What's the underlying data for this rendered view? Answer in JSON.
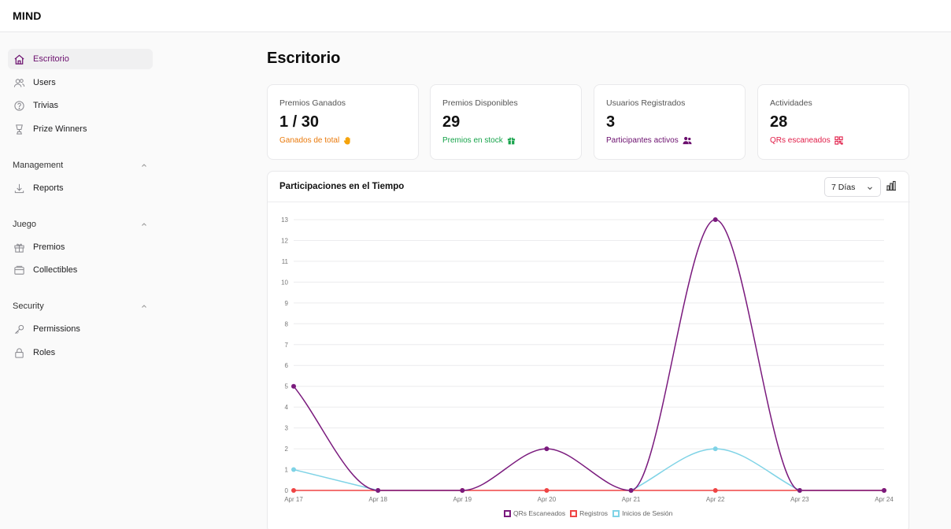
{
  "app": {
    "brand": "MIND"
  },
  "sidebar": {
    "items": [
      {
        "label": "Escritorio",
        "icon": "home-icon"
      },
      {
        "label": "Users",
        "icon": "users-icon"
      },
      {
        "label": "Trivias",
        "icon": "question-circle-icon"
      },
      {
        "label": "Prize Winners",
        "icon": "trophy-icon"
      }
    ],
    "sections": [
      {
        "label": "Management",
        "items": [
          {
            "label": "Reports",
            "icon": "download-icon"
          }
        ]
      },
      {
        "label": "Juego",
        "items": [
          {
            "label": "Premios",
            "icon": "gift-icon"
          },
          {
            "label": "Collectibles",
            "icon": "archive-icon"
          }
        ]
      },
      {
        "label": "Security",
        "items": [
          {
            "label": "Permissions",
            "icon": "key-icon"
          },
          {
            "label": "Roles",
            "icon": "lock-icon"
          }
        ]
      }
    ]
  },
  "page": {
    "title": "Escritorio"
  },
  "kpis": [
    {
      "label": "Premios Ganados",
      "value": "1 / 30",
      "sub": "Ganados de total",
      "sub_color": "#ea7a0c",
      "icon": "hand-icon"
    },
    {
      "label": "Premios Disponibles",
      "value": "29",
      "sub": "Premios en stock",
      "sub_color": "#16a34a",
      "icon": "gift-icon"
    },
    {
      "label": "Usuarios Registrados",
      "value": "3",
      "sub": "Participantes activos",
      "sub_color": "#6b0f6e",
      "icon": "users-icon"
    },
    {
      "label": "Actividades",
      "value": "28",
      "sub": "QRs escaneados",
      "sub_color": "#e11d48",
      "icon": "qr-code-icon"
    }
  ],
  "chart": {
    "title": "Participaciones en el Tiempo",
    "range": "7 Días",
    "type_button_icon": "bar-chart-icon"
  },
  "colors": {
    "accent": "#6b0f6e",
    "series_qr": "#7a1a7d",
    "series_registros": "#ef4444",
    "series_inicios": "#7fd3e6"
  },
  "chart_data": {
    "type": "line",
    "categories": [
      "Apr 17",
      "Apr 18",
      "Apr 19",
      "Apr 20",
      "Apr 21",
      "Apr 22",
      "Apr 23",
      "Apr 24"
    ],
    "series": [
      {
        "name": "QRs Escaneados",
        "values": [
          5,
          0,
          0,
          2,
          0,
          13,
          0,
          0
        ],
        "color": "#7a1a7d"
      },
      {
        "name": "Registros",
        "values": [
          0,
          0,
          0,
          0,
          0,
          0,
          0,
          0
        ],
        "color": "#ef4444"
      },
      {
        "name": "Inicios de Sesión",
        "values": [
          1,
          0,
          null,
          null,
          0,
          2,
          0,
          null
        ],
        "color": "#7fd3e6"
      }
    ],
    "yticks": [
      "0",
      "1",
      "2",
      "3",
      "4",
      "5",
      "6",
      "7",
      "8",
      "9",
      "10",
      "11",
      "12",
      "13"
    ],
    "ylim": [
      0,
      13
    ],
    "grid": true,
    "legend": "bottom"
  }
}
